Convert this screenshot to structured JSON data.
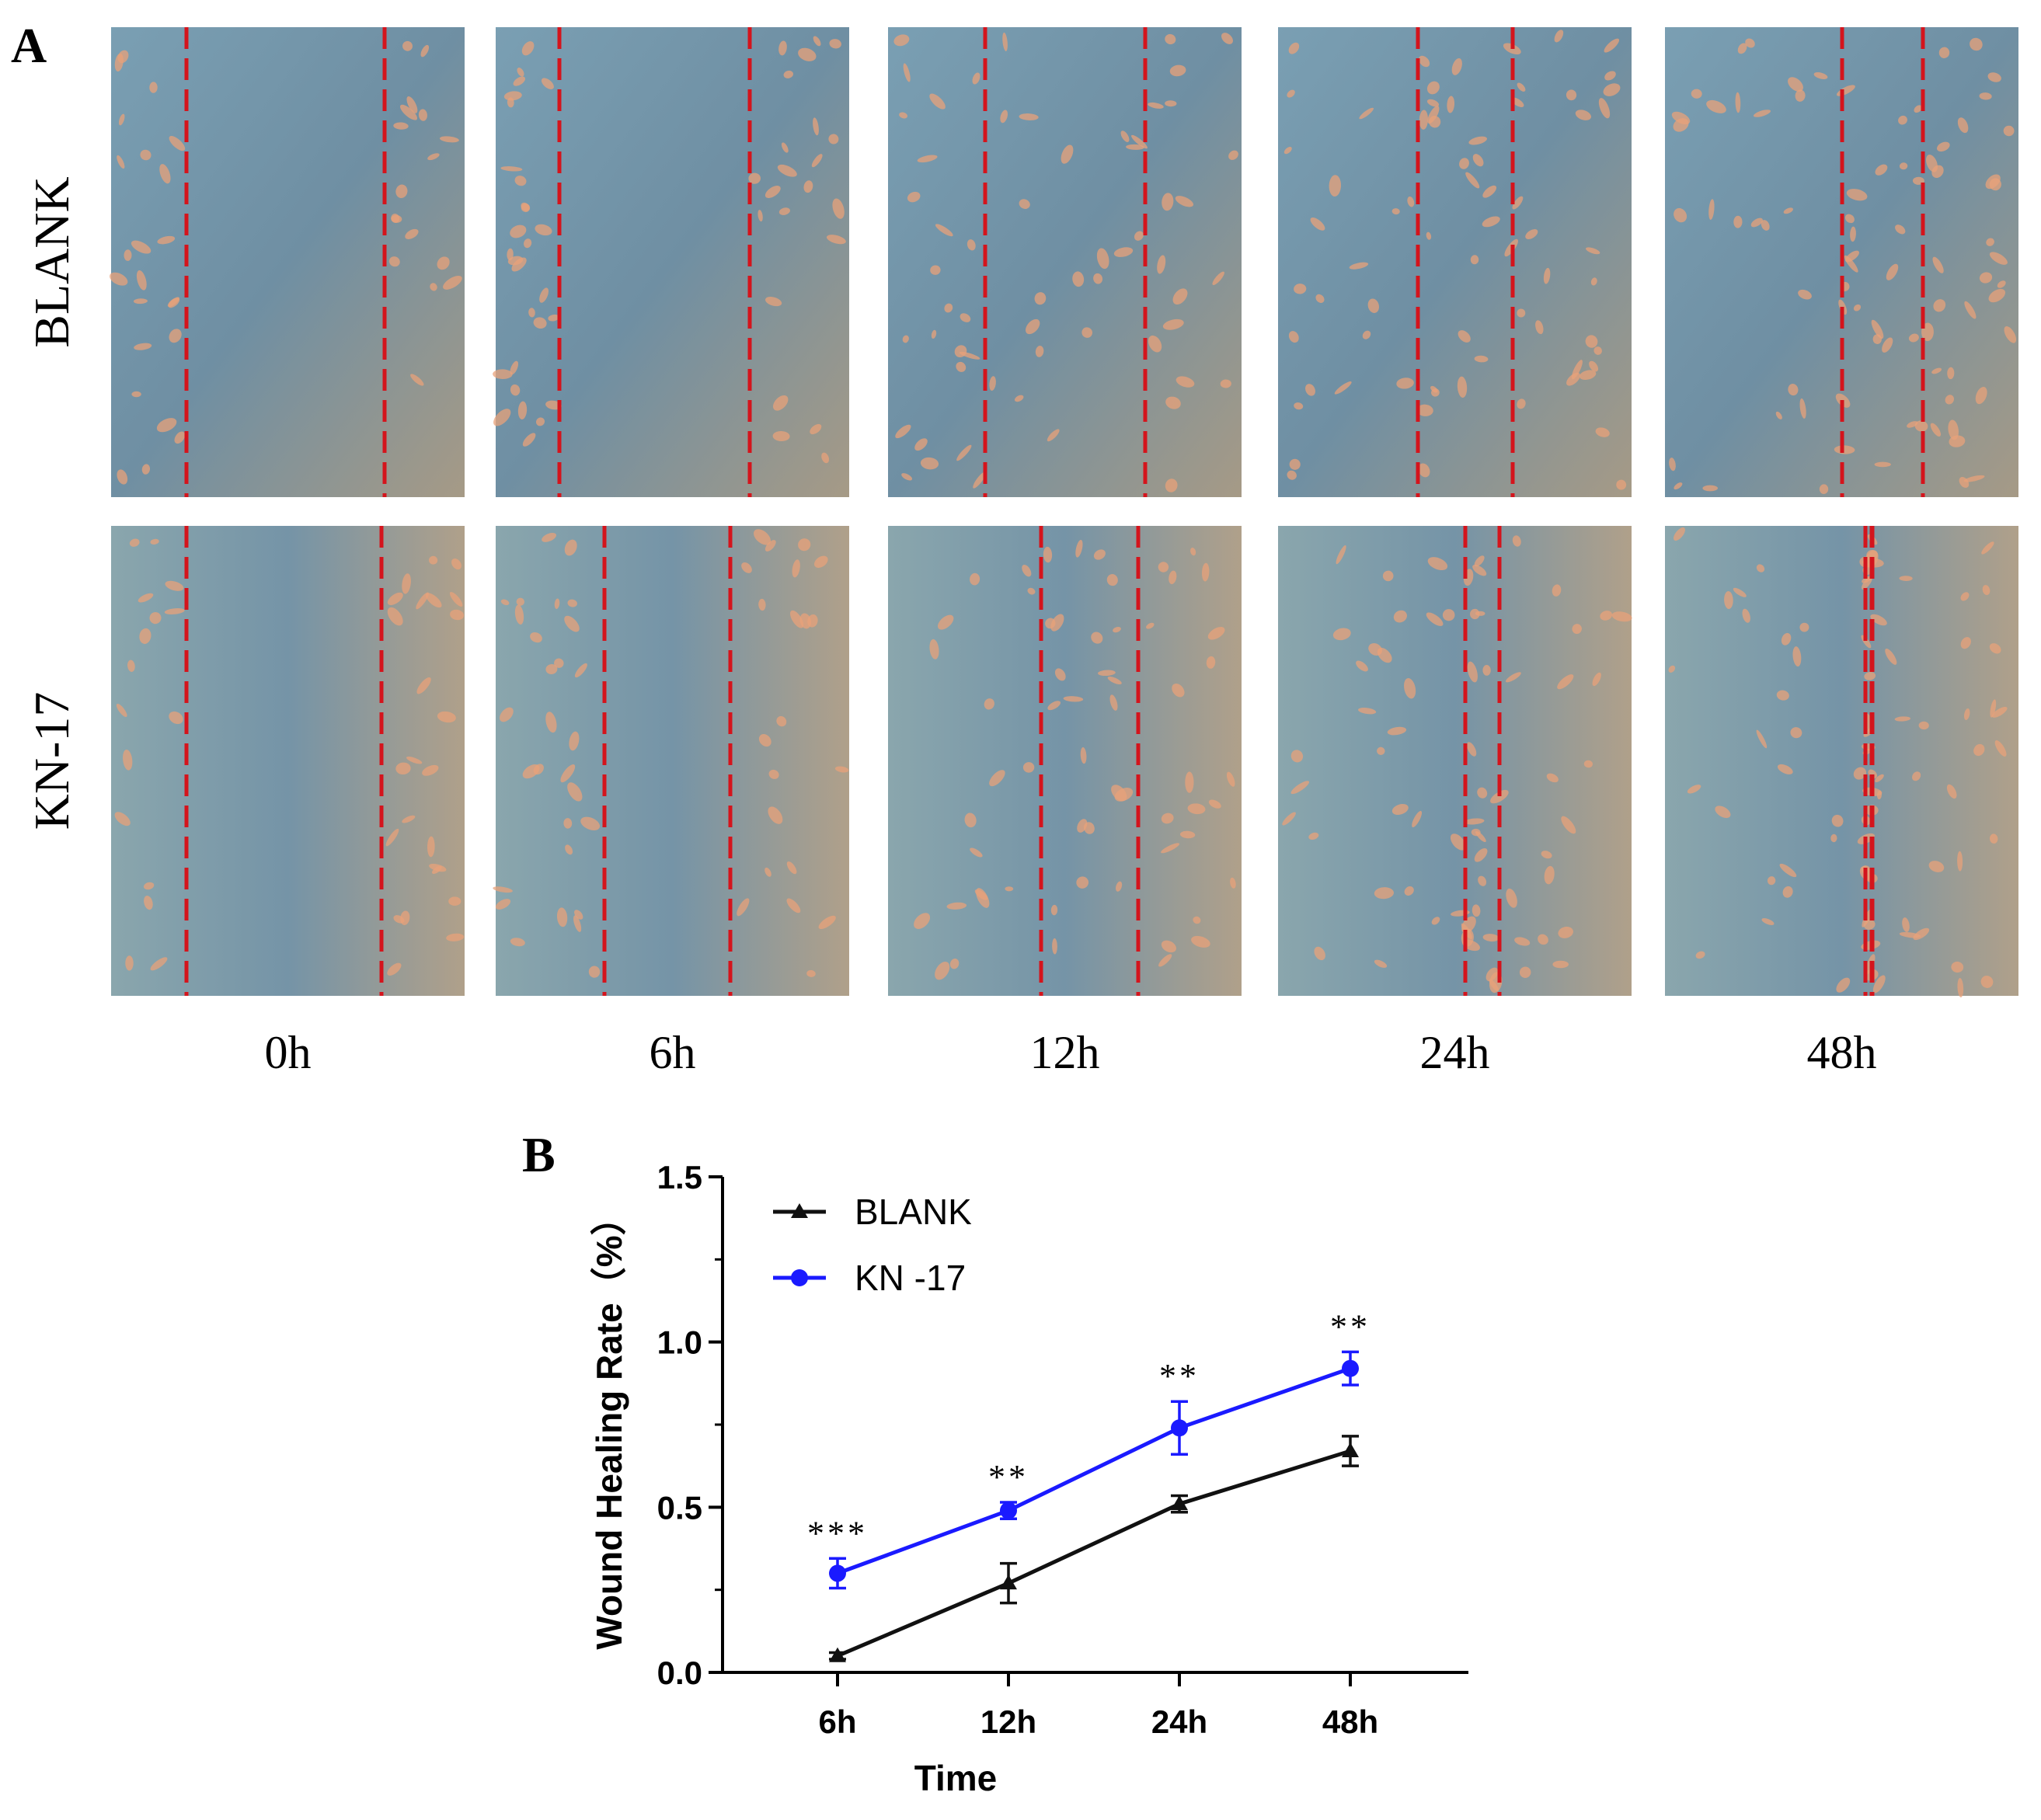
{
  "panel_a": {
    "label": "A",
    "rows": [
      {
        "label": "BLANK",
        "key": "blank"
      },
      {
        "label": "KN-17",
        "key": "kn17"
      }
    ],
    "timepoints": [
      "0h",
      "6h",
      "12h",
      "24h",
      "48h"
    ],
    "colors": {
      "wound_edge": "#d4141c",
      "background": "#6f8fa3",
      "cell": "#e8a27a"
    }
  },
  "panel_b": {
    "label": "B",
    "significance": [
      "***",
      "**",
      "**",
      "**"
    ]
  },
  "chart_data": {
    "type": "line",
    "title": "",
    "xlabel": "Time",
    "ylabel": "Wound Healing Rate（%）",
    "categories": [
      "6h",
      "12h",
      "24h",
      "48h"
    ],
    "ylim": [
      0,
      1.5
    ],
    "yticks": [
      "0.0",
      "0.5",
      "1.0",
      "1.5"
    ],
    "legend_position": "top-left",
    "series": [
      {
        "name": "BLANK",
        "marker": "triangle",
        "color": "#111111",
        "values": [
          0.05,
          0.27,
          0.51,
          0.67
        ],
        "errors": [
          0.01,
          0.06,
          0.025,
          0.045
        ]
      },
      {
        "name": "KN -17",
        "marker": "circle",
        "color": "#1a1aff",
        "values": [
          0.3,
          0.49,
          0.74,
          0.92
        ],
        "errors": [
          0.045,
          0.025,
          0.08,
          0.05
        ]
      }
    ]
  }
}
